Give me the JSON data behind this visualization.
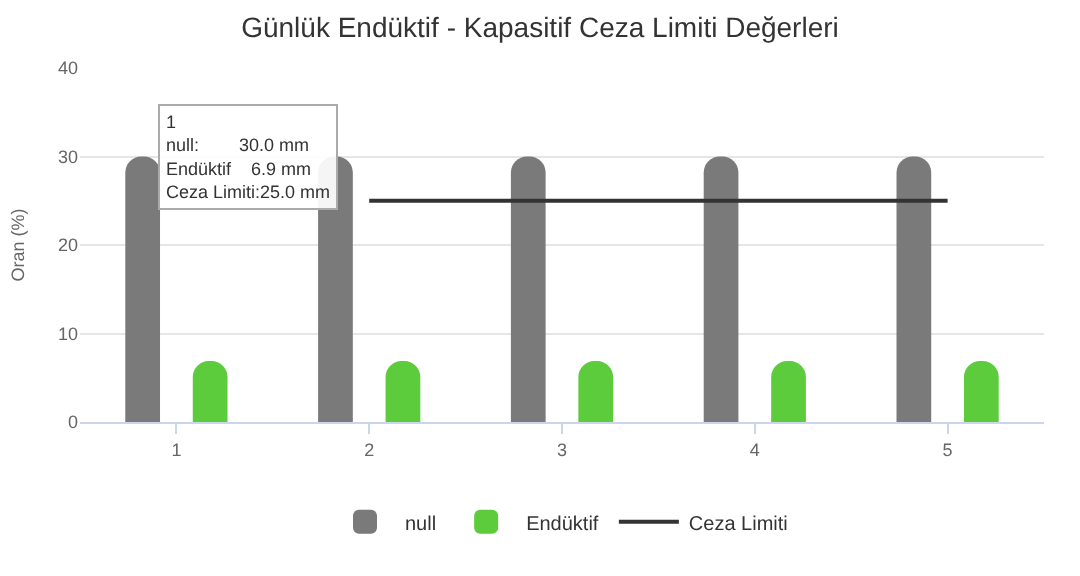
{
  "chart_data": {
    "type": "bar",
    "title": "Günlük Endüktif - Kapasitif Ceza Limiti Değerleri",
    "ylabel": "Oran (%)",
    "categories": [
      "1",
      "2",
      "3",
      "4",
      "5"
    ],
    "series": [
      {
        "name": "null",
        "color": "#7a7a7a",
        "values": [
          30,
          30,
          30,
          30,
          30
        ]
      },
      {
        "name": "Endüktif",
        "color": "#5ccc3c",
        "values": [
          6.9,
          6.9,
          6.9,
          6.9,
          6.9
        ]
      },
      {
        "name": "Ceza Limiti",
        "type": "line",
        "color": "#333333",
        "values": [
          null,
          25,
          25,
          25,
          25
        ]
      }
    ],
    "ylim": [
      0,
      40
    ],
    "yticks": [
      0,
      10,
      20,
      30,
      40
    ],
    "grid": "y",
    "legend": "bottom",
    "marker": "none",
    "annotations": [
      "1\nnull:        30.0 mm\nEndüktif    6.9 mm\nCeza Limiti:25.0 mm"
    ]
  }
}
